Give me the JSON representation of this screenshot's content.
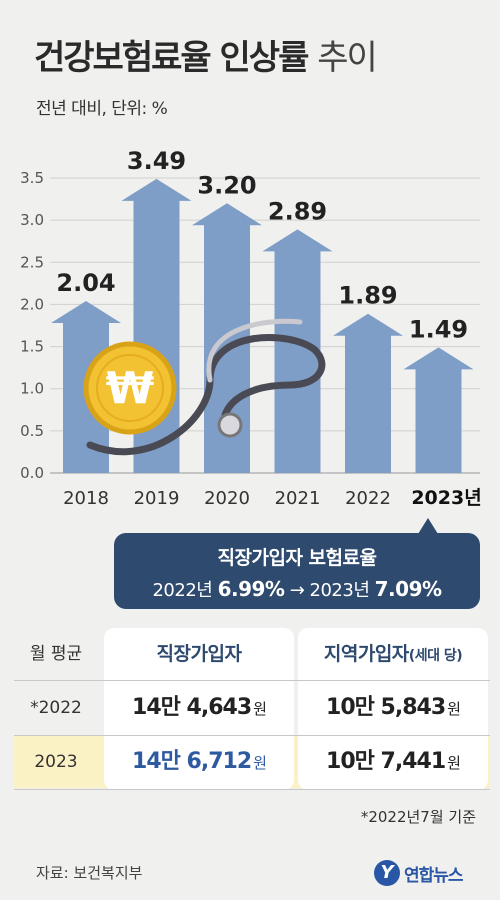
{
  "title_main": "건강보험료율 인상률",
  "title_light": "추이",
  "subtitle": "전년 대비, 단위: %",
  "chart_data": {
    "type": "bar",
    "categories": [
      "2018",
      "2019",
      "2020",
      "2021",
      "2022",
      "2023년"
    ],
    "values": [
      2.04,
      3.49,
      3.2,
      2.89,
      1.89,
      1.49
    ],
    "value_labels": [
      "2.04",
      "3.49",
      "3.20",
      "2.89",
      "1.89",
      "1.49"
    ],
    "ylim": [
      0,
      3.5
    ],
    "yticks": [
      "0.0",
      "0.5",
      "1.0",
      "1.5",
      "2.0",
      "2.5",
      "3.0",
      "3.5"
    ],
    "bar_color": "#7f9ec7",
    "grid": true
  },
  "callout": {
    "title": "직장가입자 보험료율",
    "from_year": "2022년",
    "from_value": "6.99%",
    "arrow": "→",
    "to_year": "2023년",
    "to_value": "7.09%"
  },
  "table": {
    "row_header": "월 평균",
    "col1": "직장가입자",
    "col2_main": "지역가입자",
    "col2_note": "(세대 당)",
    "rows": [
      {
        "label": "*2022",
        "c1_num": "14만 4,643",
        "c1_unit": "원",
        "c2_num": "10만 5,843",
        "c2_unit": "원"
      },
      {
        "label": "2023",
        "c1_num": "14만 6,712",
        "c1_unit": "원",
        "c2_num": "10만 7,441",
        "c2_unit": "원"
      }
    ]
  },
  "footnote": "*2022년7월 기준",
  "source": "자료: 보건복지부",
  "logo_text": "연합뉴스",
  "logo_mark": "Y"
}
